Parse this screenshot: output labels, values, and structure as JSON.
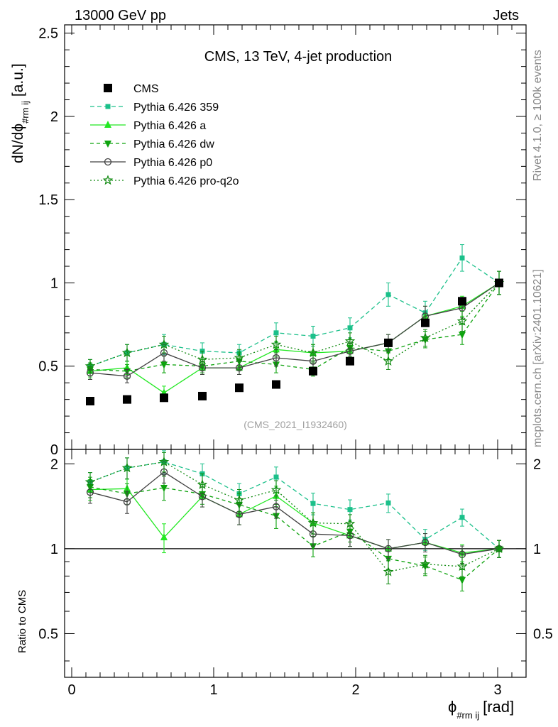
{
  "header": {
    "left": "13000 GeV pp",
    "right": "Jets"
  },
  "side": {
    "rivet": "Rivet 4.1.0, ≥ 100k events",
    "mcplots": "mcplots.cern.ch [arXiv:2401.10621]"
  },
  "chart_data": {
    "type": "line",
    "title": "CMS, 13 TeV, 4-jet production",
    "analysis_id": "(CMS_2021_I1932460)",
    "xlabel_main": "ϕ",
    "xlabel_sub": "#rm ij",
    "xlabel_unit": "[rad]",
    "ylabel_main": "dN/dϕ",
    "ylabel_sub": "#rm ij",
    "ylabel_unit": "[a.u.]",
    "ratio_ylabel": "Ratio to CMS",
    "xlim": [
      -0.05,
      3.2
    ],
    "ylim": [
      0,
      2.55
    ],
    "ratio_ylim": [
      0.35,
      2.25
    ],
    "x_ticks": [
      0,
      1,
      2,
      3
    ],
    "x_tick_labels": [
      "0",
      "1",
      "2",
      "3"
    ],
    "y_ticks": [
      0,
      0.5,
      1,
      1.5,
      2,
      2.5
    ],
    "y_tick_labels": [
      "0",
      "0.5",
      "1",
      "1.5",
      "2",
      "2.5"
    ],
    "ratio_y_ticks": [
      0.5,
      1,
      2
    ],
    "ratio_y_tick_labels": [
      "0.5",
      "1",
      "2"
    ],
    "x": [
      0.13,
      0.39,
      0.65,
      0.92,
      1.18,
      1.44,
      1.7,
      1.96,
      2.23,
      2.49,
      2.75,
      3.01
    ],
    "series": [
      {
        "name": "CMS",
        "color": "#000000",
        "marker": "square",
        "dash": "none",
        "values": [
          0.29,
          0.3,
          0.31,
          0.32,
          0.37,
          0.39,
          0.47,
          0.53,
          0.64,
          0.76,
          0.89,
          1.0
        ],
        "errors": [
          0,
          0,
          0,
          0,
          0,
          0,
          0,
          0,
          0,
          0,
          0,
          0
        ]
      },
      {
        "name": "Pythia 6.426 359",
        "color": "#1bc08a",
        "marker": "smallsquare",
        "dash": "6,4",
        "values": [
          0.5,
          0.58,
          0.63,
          0.59,
          0.58,
          0.7,
          0.68,
          0.73,
          0.93,
          0.82,
          1.15,
          1.0
        ],
        "errors": [
          0.04,
          0.05,
          0.06,
          0.05,
          0.05,
          0.06,
          0.06,
          0.06,
          0.07,
          0.07,
          0.08,
          0.07
        ]
      },
      {
        "name": "Pythia 6.426 a",
        "color": "#22e822",
        "marker": "triangle-up",
        "dash": "none",
        "values": [
          0.47,
          0.49,
          0.34,
          0.49,
          0.49,
          0.6,
          0.58,
          0.59,
          0.64,
          0.8,
          0.86,
          1.0
        ],
        "errors": [
          0.04,
          0.04,
          0.04,
          0.04,
          0.04,
          0.05,
          0.05,
          0.05,
          0.05,
          0.06,
          0.06,
          0.07
        ]
      },
      {
        "name": "Pythia 6.426 dw",
        "color": "#0ea30e",
        "marker": "triangle-down",
        "dash": "5,4",
        "values": [
          0.48,
          0.47,
          0.51,
          0.5,
          0.53,
          0.51,
          0.48,
          0.61,
          0.59,
          0.66,
          0.69,
          1.0
        ],
        "errors": [
          0.04,
          0.04,
          0.05,
          0.04,
          0.05,
          0.05,
          0.04,
          0.05,
          0.05,
          0.05,
          0.06,
          0.07
        ]
      },
      {
        "name": "Pythia 6.426 p0",
        "color": "#404040",
        "marker": "circle-open",
        "dash": "none",
        "values": [
          0.46,
          0.44,
          0.58,
          0.49,
          0.49,
          0.55,
          0.53,
          0.59,
          0.64,
          0.8,
          0.85,
          1.0
        ],
        "errors": [
          0.04,
          0.04,
          0.05,
          0.04,
          0.04,
          0.05,
          0.05,
          0.05,
          0.05,
          0.06,
          0.06,
          0.07
        ]
      },
      {
        "name": "Pythia 6.426 pro-q2o",
        "color": "#108a10",
        "marker": "star",
        "dash": "2,3",
        "values": [
          0.5,
          0.58,
          0.63,
          0.54,
          0.55,
          0.63,
          0.58,
          0.65,
          0.53,
          0.67,
          0.77,
          1.0
        ],
        "errors": [
          0.04,
          0.05,
          0.05,
          0.05,
          0.05,
          0.05,
          0.05,
          0.05,
          0.05,
          0.05,
          0.06,
          0.07
        ]
      }
    ]
  }
}
